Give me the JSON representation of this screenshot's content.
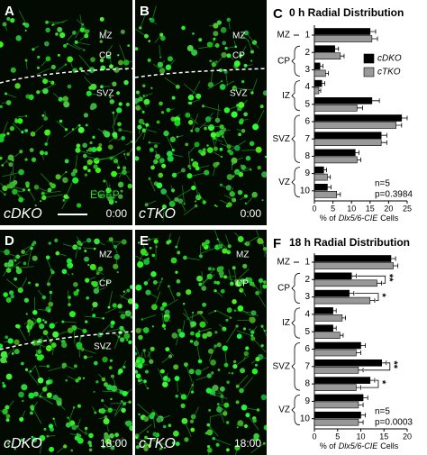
{
  "panels": [
    {
      "letter": "A",
      "labels": [
        "MZ",
        "CP",
        "SVZ"
      ],
      "marker": "EGFP",
      "genotype": "cDKO",
      "time": "0:00"
    },
    {
      "letter": "B",
      "labels": [
        "MZ",
        "CP",
        "SVZ"
      ],
      "genotype": "cTKO",
      "time": "0:00"
    },
    {
      "letter": "D",
      "labels": [
        "MZ",
        "CP",
        "SVZ"
      ],
      "genotype": "cDKO",
      "time": "18:00"
    },
    {
      "letter": "E",
      "labels": [
        "MZ",
        "CP"
      ],
      "genotype": "cTKO",
      "time": "18:00"
    }
  ],
  "chart_data": [
    {
      "type": "bar",
      "letter": "C",
      "title": "0 h Radial Distribution",
      "categories": [
        "1",
        "2",
        "3",
        "4",
        "5",
        "6",
        "7",
        "8",
        "9",
        "10"
      ],
      "zones": [
        {
          "label": "MZ",
          "categories": [
            "1"
          ]
        },
        {
          "label": "CP",
          "categories": [
            "2",
            "3"
          ]
        },
        {
          "label": "IZ",
          "categories": [
            "4",
            "5"
          ]
        },
        {
          "label": "SVZ",
          "categories": [
            "6",
            "7",
            "8"
          ]
        },
        {
          "label": "VZ",
          "categories": [
            "9",
            "10"
          ]
        }
      ],
      "series": [
        {
          "name": "cDKO",
          "color": "#000000",
          "values": [
            15,
            5.5,
            1.5,
            2,
            15.5,
            23.5,
            18,
            11,
            2.5,
            3.5
          ],
          "errors": [
            1.5,
            1,
            0.8,
            0.8,
            2,
            1.5,
            1.5,
            1,
            0.8,
            1
          ]
        },
        {
          "name": "cTKO",
          "color": "#999999",
          "values": [
            15.5,
            7,
            3,
            1.2,
            11.5,
            22,
            18,
            11.5,
            3.5,
            6
          ],
          "errors": [
            1.5,
            1,
            0.8,
            0.5,
            1.5,
            1.5,
            1.5,
            1,
            0.8,
            1
          ]
        }
      ],
      "xlim": [
        0,
        25
      ],
      "xticks": [
        0,
        5,
        10,
        15,
        20,
        25
      ],
      "xlabel": [
        "% of",
        "Dlx5/6-CIE",
        "Cells"
      ],
      "legend": true,
      "annotations": [
        "n=5",
        "p=0.3984"
      ]
    },
    {
      "type": "bar",
      "letter": "F",
      "title": "18 h Radial Distribution",
      "categories": [
        "1",
        "2",
        "3",
        "4",
        "5",
        "6",
        "7",
        "8",
        "9",
        "10"
      ],
      "zones": [
        {
          "label": "MZ",
          "categories": [
            "1"
          ]
        },
        {
          "label": "CP",
          "categories": [
            "2",
            "3"
          ]
        },
        {
          "label": "IZ",
          "categories": [
            "4",
            "5"
          ]
        },
        {
          "label": "SVZ",
          "categories": [
            "6",
            "7",
            "8"
          ]
        },
        {
          "label": "VZ",
          "categories": [
            "9",
            "10"
          ]
        }
      ],
      "series": [
        {
          "name": "cDKO",
          "color": "#000000",
          "values": [
            16.5,
            8,
            7.5,
            4,
            4,
            10,
            14.5,
            12,
            10.5,
            10
          ],
          "errors": [
            1,
            1,
            1,
            0.7,
            0.7,
            1,
            1,
            1,
            1,
            1
          ]
        },
        {
          "name": "cTKO",
          "color": "#999999",
          "values": [
            17,
            13.5,
            12,
            6,
            5.5,
            9,
            9.5,
            9,
            9.5,
            9.5
          ],
          "errors": [
            1,
            1,
            1,
            0.7,
            0.7,
            1,
            1,
            1,
            1,
            1
          ]
        }
      ],
      "significance": [
        null,
        "**",
        "*",
        null,
        null,
        null,
        "**",
        "*",
        null,
        null
      ],
      "xlim": [
        0,
        20
      ],
      "xticks": [
        0,
        5,
        10,
        15,
        20
      ],
      "xlabel": [
        "% of",
        "Dlx5/6-CIE",
        "Cells"
      ],
      "legend": false,
      "annotations": [
        "n=5",
        "p=0.0003"
      ]
    }
  ]
}
